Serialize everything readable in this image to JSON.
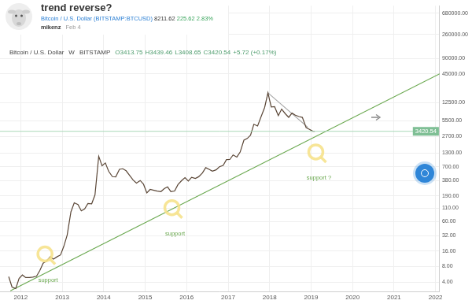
{
  "header": {
    "title": "trend reverse?",
    "symbol": "Bitcoin / U.S. Dollar (BITSTAMP:BTCUSD)",
    "price": "8211.62",
    "change": "225.62",
    "change_percent": "2.83%",
    "author": "mikenz",
    "date": "Feb 4"
  },
  "chart_data": {
    "type": "line",
    "title": "Bitcoin / U.S. Dollar",
    "interval": "W",
    "exchange": "BITSTAMP",
    "ohlc": [
      "O3413.75",
      "H3439.46",
      "L3408.65",
      "C3420.54",
      "+5.72 (+0.17%)"
    ],
    "log": "y",
    "grid": true,
    "xlim": [
      2011.5,
      2022.1
    ],
    "xticks": [
      2012,
      2013,
      2014,
      2015,
      2016,
      2017,
      2018,
      2019,
      2020,
      2021,
      2022
    ],
    "ylim": [
      2.6,
      950000
    ],
    "yticks": [
      {
        "value": 4,
        "label": "4.00"
      },
      {
        "value": 8,
        "label": "8.00"
      },
      {
        "value": 16,
        "label": "16.00"
      },
      {
        "value": 32,
        "label": "32.00"
      },
      {
        "value": 60,
        "label": "60.00"
      },
      {
        "value": 110,
        "label": "110.00"
      },
      {
        "value": 190,
        "label": "190.00"
      },
      {
        "value": 380,
        "label": "380.00"
      },
      {
        "value": 700,
        "label": "700.00"
      },
      {
        "value": 1300,
        "label": "1300.00"
      },
      {
        "value": 2700,
        "label": "2700.00"
      },
      {
        "value": 5500,
        "label": "5500.00"
      },
      {
        "value": 12500,
        "label": "12500.00"
      },
      {
        "value": 45000,
        "label": "45000.00"
      },
      {
        "value": 90000,
        "label": "90000.00"
      },
      {
        "value": 260000,
        "label": "260000.00"
      },
      {
        "value": 680000,
        "label": "680000.00"
      }
    ],
    "series": [
      {
        "color": "#5a4636",
        "x": [
          2011.71,
          2011.79,
          2011.88,
          2011.96,
          2012.04,
          2012.12,
          2012.21,
          2012.29,
          2012.38,
          2012.46,
          2012.54,
          2012.62,
          2012.71,
          2012.79,
          2012.88,
          2012.96,
          2013.04,
          2013.12,
          2013.21,
          2013.29,
          2013.38,
          2013.46,
          2013.54,
          2013.62,
          2013.71,
          2013.79,
          2013.88,
          2013.96,
          2014.04,
          2014.12,
          2014.21,
          2014.29,
          2014.38,
          2014.46,
          2014.54,
          2014.62,
          2014.71,
          2014.79,
          2014.88,
          2014.96,
          2015.04,
          2015.12,
          2015.21,
          2015.29,
          2015.38,
          2015.46,
          2015.54,
          2015.62,
          2015.71,
          2015.79,
          2015.88,
          2015.96,
          2016.04,
          2016.12,
          2016.21,
          2016.29,
          2016.38,
          2016.46,
          2016.54,
          2016.62,
          2016.71,
          2016.79,
          2016.88,
          2016.96,
          2017.04,
          2017.12,
          2017.21,
          2017.29,
          2017.38,
          2017.46,
          2017.54,
          2017.62,
          2017.71,
          2017.79,
          2017.88,
          2017.96,
          2018.0,
          2018.04,
          2018.12,
          2018.21,
          2018.29,
          2018.38,
          2018.46,
          2018.54,
          2018.62,
          2018.71,
          2018.79,
          2018.88,
          2018.96,
          2019.04,
          2019.09
        ],
        "values": [
          5.1,
          3.2,
          3.0,
          4.7,
          5.5,
          4.9,
          4.9,
          5.0,
          5.2,
          6.7,
          9.3,
          10.2,
          12.4,
          11.2,
          12.5,
          13.5,
          20,
          33,
          93,
          139,
          129,
          97,
          106,
          135,
          133,
          198,
          1120,
          732,
          830,
          570,
          450,
          445,
          625,
          640,
          585,
          480,
          386,
          338,
          378,
          320,
          217,
          254,
          244,
          236,
          230,
          263,
          284,
          230,
          236,
          314,
          377,
          430,
          368,
          437,
          416,
          448,
          531,
          673,
          624,
          575,
          609,
          700,
          742,
          963,
          970,
          1190,
          1080,
          1350,
          2300,
          2480,
          2870,
          4700,
          4340,
          6450,
          9950,
          19200,
          13800,
          10200,
          10300,
          6930,
          9240,
          7500,
          6400,
          7730,
          7030,
          6630,
          6370,
          4040,
          3740,
          3440,
          3420.54
        ]
      },
      {
        "color": "#6aa84f",
        "x": [
          2011.75,
          2022.1
        ],
        "values": [
          2.7,
          45000
        ]
      },
      {
        "color": "#a5a5a5",
        "x": [
          2017.96,
          2018.92
        ],
        "values": [
          19200,
          4100
        ]
      }
    ],
    "price_line": {
      "value": 3420.54,
      "color": "#a9d8b8"
    },
    "annotations": [
      {
        "text": "support",
        "x": 2012.66,
        "y": 4.4
      },
      {
        "text": "support",
        "x": 2015.72,
        "y": 35
      },
      {
        "text": "support ?",
        "x": 2019.19,
        "y": 424
      }
    ]
  }
}
